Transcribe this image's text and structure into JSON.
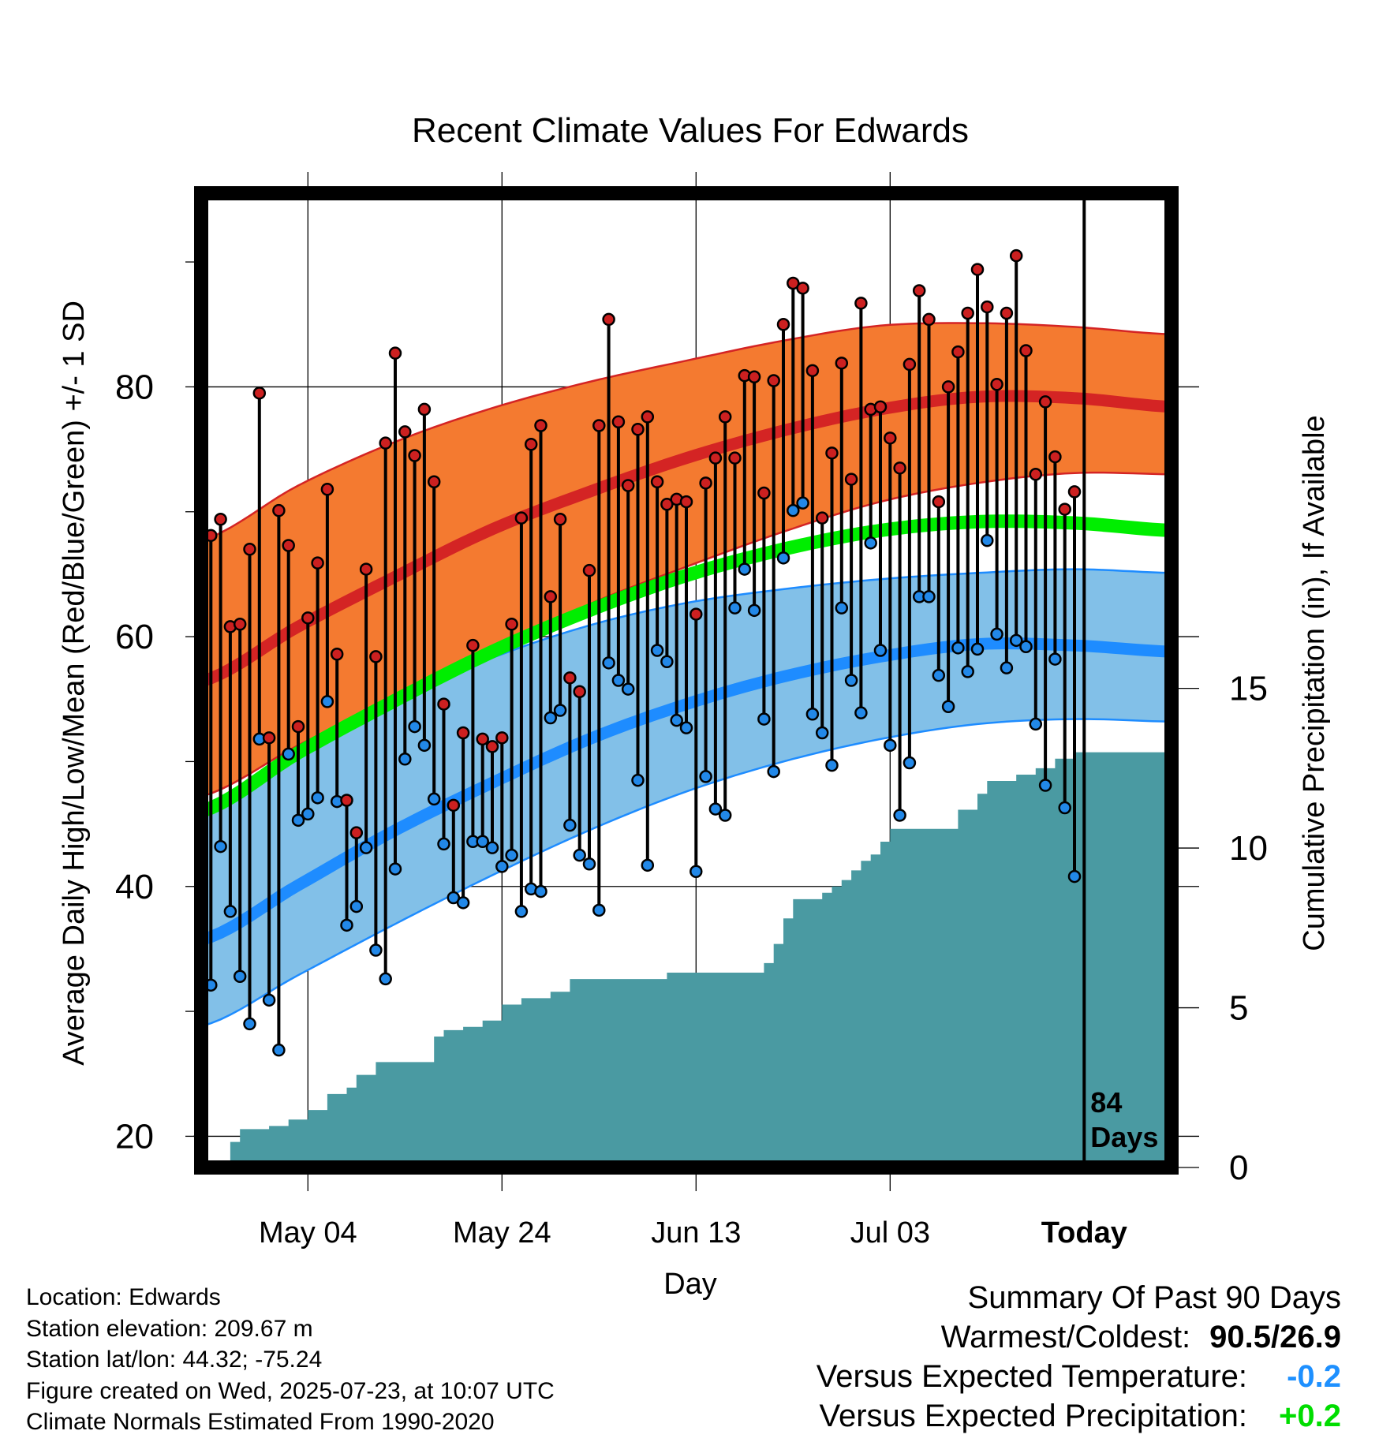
{
  "chart_data": {
    "type": "line",
    "title": "Recent Climate Values For Edwards",
    "xlabel": "Day",
    "ylabel": "Average Daily High/Low/Mean (Red/Blue/Green) +/- 1 SD",
    "y2label": "Cumulative Precipitation (in), If Available",
    "ylim": [
      17.5,
      95.5
    ],
    "y2lim": [
      0,
      30.5
    ],
    "yticks": [
      "20",
      "40",
      "60",
      "80"
    ],
    "y2ticks": [
      "0",
      "5",
      "10",
      "15"
    ],
    "xticks": [
      {
        "label": "May 04",
        "day": 11
      },
      {
        "label": "May 24",
        "day": 31
      },
      {
        "label": "Jun 13",
        "day": 51
      },
      {
        "label": "Jul 03",
        "day": 71
      },
      {
        "label": "Today",
        "day": 91
      }
    ],
    "xlim": [
      0,
      100
    ],
    "grid": true,
    "today_day": 91,
    "today_annotation": [
      "84",
      "Days"
    ],
    "normal_high_mean": [
      [
        0,
        56.4
      ],
      [
        10,
        60.8
      ],
      [
        20,
        64.8
      ],
      [
        30,
        68.6
      ],
      [
        40,
        71.6
      ],
      [
        50,
        74.3
      ],
      [
        60,
        76.5
      ],
      [
        70,
        78.2
      ],
      [
        80,
        79.2
      ],
      [
        90,
        79.1
      ],
      [
        100,
        78.4
      ]
    ],
    "normal_high_upper": [
      [
        0,
        67.7
      ],
      [
        10,
        72.1
      ],
      [
        20,
        75.6
      ],
      [
        30,
        78.3
      ],
      [
        40,
        80.4
      ],
      [
        50,
        82.1
      ],
      [
        60,
        83.7
      ],
      [
        70,
        84.9
      ],
      [
        80,
        85.1
      ],
      [
        90,
        84.8
      ],
      [
        100,
        84.2
      ]
    ],
    "normal_high_lower": [
      [
        0,
        47.2
      ],
      [
        10,
        51.3
      ],
      [
        20,
        55.1
      ],
      [
        30,
        58.9
      ],
      [
        40,
        62.6
      ],
      [
        50,
        65.6
      ],
      [
        60,
        68.4
      ],
      [
        70,
        70.8
      ],
      [
        80,
        72.3
      ],
      [
        90,
        73.1
      ],
      [
        100,
        73.0
      ]
    ],
    "normal_mean": [
      [
        0,
        46.0
      ],
      [
        10,
        50.7
      ],
      [
        20,
        54.9
      ],
      [
        30,
        58.8
      ],
      [
        40,
        62.1
      ],
      [
        50,
        64.9
      ],
      [
        60,
        67.0
      ],
      [
        70,
        68.5
      ],
      [
        80,
        69.2
      ],
      [
        90,
        69.1
      ],
      [
        100,
        68.5
      ]
    ],
    "normal_low_mean": [
      [
        0,
        35.7
      ],
      [
        10,
        40.1
      ],
      [
        20,
        44.5
      ],
      [
        30,
        48.3
      ],
      [
        40,
        51.8
      ],
      [
        50,
        54.6
      ],
      [
        60,
        56.8
      ],
      [
        70,
        58.4
      ],
      [
        80,
        59.4
      ],
      [
        90,
        59.3
      ],
      [
        100,
        58.8
      ]
    ],
    "normal_low_upper": [
      [
        0,
        46.0
      ],
      [
        10,
        50.7
      ],
      [
        20,
        54.9
      ],
      [
        30,
        58.3
      ],
      [
        40,
        60.9
      ],
      [
        50,
        62.7
      ],
      [
        60,
        63.8
      ],
      [
        70,
        64.6
      ],
      [
        80,
        65.1
      ],
      [
        90,
        65.4
      ],
      [
        100,
        65.1
      ]
    ],
    "normal_low_lower": [
      [
        0,
        28.8
      ],
      [
        10,
        32.9
      ],
      [
        20,
        37.0
      ],
      [
        30,
        40.9
      ],
      [
        40,
        44.5
      ],
      [
        50,
        47.6
      ],
      [
        60,
        50.0
      ],
      [
        70,
        51.8
      ],
      [
        80,
        53.0
      ],
      [
        90,
        53.4
      ],
      [
        100,
        53.2
      ]
    ],
    "daily_highs": [
      68.1,
      69.4,
      60.8,
      61.0,
      67.0,
      79.5,
      51.9,
      70.1,
      67.3,
      52.8,
      61.5,
      65.9,
      71.8,
      58.6,
      46.9,
      44.3,
      65.4,
      58.4,
      75.5,
      82.7,
      76.4,
      74.5,
      78.2,
      72.4,
      54.6,
      46.5,
      52.3,
      59.3,
      51.8,
      51.2,
      51.9,
      61.0,
      69.5,
      75.4,
      76.9,
      63.2,
      69.4,
      56.7,
      55.6,
      65.3,
      76.9,
      85.4,
      77.2,
      72.1,
      76.6,
      77.6,
      72.4,
      70.6,
      71.0,
      70.8,
      61.8,
      72.3,
      74.3,
      77.6,
      74.3,
      80.9,
      80.8,
      71.5,
      80.5,
      85.0,
      88.3,
      87.9,
      81.3,
      69.5,
      74.7,
      81.9,
      72.6,
      86.7,
      78.2,
      78.4,
      75.9,
      73.5,
      81.8,
      87.7,
      85.4,
      70.8,
      80.0,
      82.8,
      85.9,
      89.4,
      86.4,
      80.2,
      85.9,
      90.5,
      82.9,
      73.0,
      78.8,
      74.4,
      70.2,
      71.6
    ],
    "daily_lows": [
      32.1,
      43.2,
      38.0,
      32.8,
      29.0,
      51.8,
      30.9,
      26.9,
      50.6,
      45.3,
      45.8,
      47.1,
      54.8,
      46.8,
      36.9,
      38.4,
      43.1,
      34.9,
      32.6,
      41.4,
      50.2,
      52.8,
      51.3,
      47.0,
      43.4,
      39.1,
      38.7,
      43.6,
      43.6,
      43.1,
      41.6,
      42.5,
      38.0,
      39.8,
      39.6,
      53.5,
      54.1,
      44.9,
      42.5,
      41.8,
      38.1,
      57.9,
      56.5,
      55.8,
      48.5,
      41.7,
      58.9,
      58.0,
      53.3,
      52.7,
      41.2,
      48.8,
      46.2,
      45.7,
      62.3,
      65.4,
      62.1,
      53.4,
      49.2,
      66.3,
      70.1,
      70.7,
      53.8,
      52.3,
      49.7,
      62.3,
      56.5,
      53.9,
      67.5,
      58.9,
      51.3,
      45.7,
      49.9,
      63.2,
      63.2,
      56.9,
      54.4,
      59.1,
      57.2,
      59.0,
      67.7,
      60.2,
      57.5,
      59.7,
      59.2,
      53.0,
      48.1,
      58.2,
      46.3,
      40.8
    ],
    "precip_cumulative": [
      [
        2,
        0.0
      ],
      [
        3,
        0.8
      ],
      [
        4,
        1.2
      ],
      [
        7,
        1.3
      ],
      [
        9,
        1.5
      ],
      [
        11,
        1.8
      ],
      [
        13,
        2.3
      ],
      [
        15,
        2.5
      ],
      [
        16,
        2.9
      ],
      [
        18,
        3.3
      ],
      [
        23,
        3.3
      ],
      [
        24,
        4.1
      ],
      [
        25,
        4.3
      ],
      [
        27,
        4.4
      ],
      [
        29,
        4.6
      ],
      [
        31,
        5.1
      ],
      [
        33,
        5.3
      ],
      [
        36,
        5.5
      ],
      [
        38,
        5.9
      ],
      [
        47,
        5.9
      ],
      [
        48,
        6.1
      ],
      [
        57,
        6.1
      ],
      [
        58,
        6.4
      ],
      [
        59,
        7.0
      ],
      [
        60,
        7.8
      ],
      [
        61,
        8.4
      ],
      [
        64,
        8.6
      ],
      [
        65,
        8.8
      ],
      [
        66,
        9.0
      ],
      [
        67,
        9.3
      ],
      [
        68,
        9.6
      ],
      [
        69,
        9.8
      ],
      [
        70,
        10.2
      ],
      [
        71,
        10.6
      ],
      [
        75,
        10.6
      ],
      [
        78,
        11.2
      ],
      [
        80,
        11.7
      ],
      [
        81,
        12.1
      ],
      [
        84,
        12.3
      ],
      [
        86,
        12.5
      ],
      [
        88,
        12.8
      ],
      [
        90,
        13.0
      ],
      [
        100,
        13.0
      ]
    ]
  },
  "metadata": [
    "Location: Edwards",
    "Station elevation: 209.67 m",
    "Station lat/lon: 44.32; -75.24",
    "Figure created on Wed, 2025-07-23, at 10:07 UTC",
    "Climate Normals Estimated From 1990-2020"
  ],
  "summary": {
    "title": "Summary Of Past 90 Days",
    "warmest_label": "Warmest/Coldest:",
    "warmest_value": "90.5/26.9",
    "temp_label": "Versus Expected Temperature:",
    "temp_value": "-0.2",
    "temp_color": "#1e90ff",
    "precip_label": "Versus Expected Precipitation:",
    "precip_value": "+0.2",
    "precip_color": "#00dd00"
  },
  "colors": {
    "high_band": "#f47a30",
    "high_line": "#d42424",
    "mean_line": "#00ee00",
    "low_band": "#82c0e8",
    "low_line": "#1e8cff",
    "precip": "#4a9aa2",
    "high_dot": "#cc2020",
    "low_dot": "#2288e8"
  }
}
